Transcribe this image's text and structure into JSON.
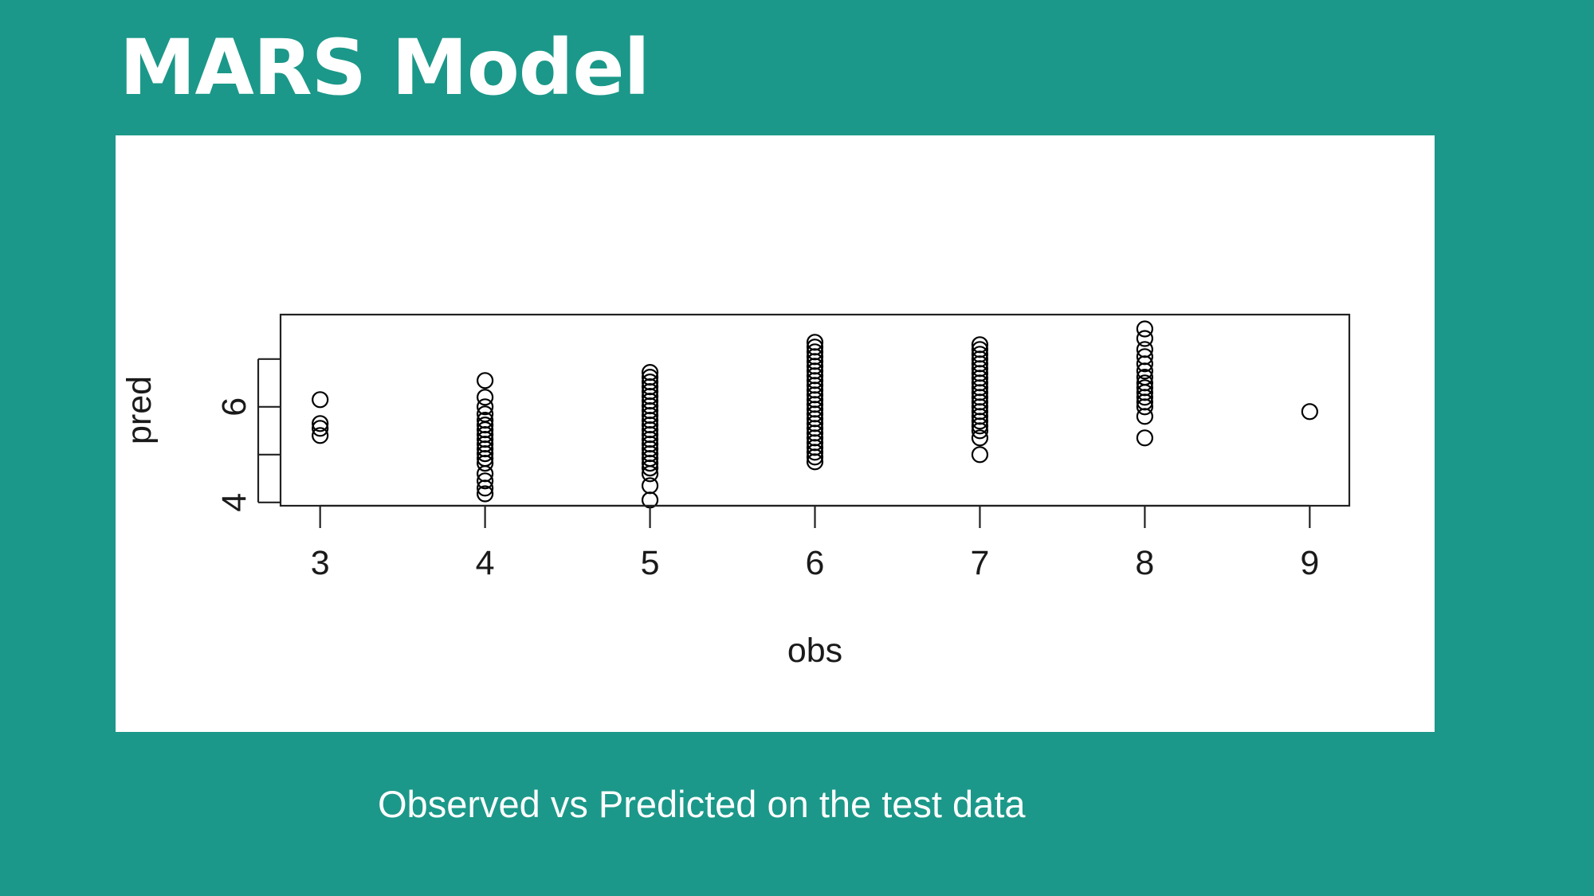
{
  "slide": {
    "title": "MARS Model",
    "caption": "Observed vs Predicted on the test data"
  },
  "colors": {
    "background": "#1b9889",
    "panel": "#ffffff",
    "marks": "#000000"
  },
  "chart_data": {
    "type": "scatter",
    "xlabel": "obs",
    "ylabel": "pred",
    "xlim": [
      2.76,
      9.24
    ],
    "ylim": [
      3.93,
      7.93
    ],
    "x_ticks": [
      3,
      4,
      5,
      6,
      7,
      8,
      9
    ],
    "y_ticks": [
      4,
      5,
      6,
      7
    ],
    "y_tick_labels": [
      "4",
      "",
      "6",
      ""
    ],
    "grid": false,
    "marker": "open-circle",
    "points": [
      {
        "x": 3,
        "y": 6.15
      },
      {
        "x": 3,
        "y": 5.65
      },
      {
        "x": 3,
        "y": 5.55
      },
      {
        "x": 3,
        "y": 5.4
      },
      {
        "x": 4,
        "y": 6.55
      },
      {
        "x": 4,
        "y": 6.2
      },
      {
        "x": 4,
        "y": 6.0
      },
      {
        "x": 4,
        "y": 5.85
      },
      {
        "x": 4,
        "y": 5.72
      },
      {
        "x": 4,
        "y": 5.62
      },
      {
        "x": 4,
        "y": 5.52
      },
      {
        "x": 4,
        "y": 5.42
      },
      {
        "x": 4,
        "y": 5.32
      },
      {
        "x": 4,
        "y": 5.22
      },
      {
        "x": 4,
        "y": 5.12
      },
      {
        "x": 4,
        "y": 5.02
      },
      {
        "x": 4,
        "y": 4.92
      },
      {
        "x": 4,
        "y": 4.82
      },
      {
        "x": 4,
        "y": 4.6
      },
      {
        "x": 4,
        "y": 4.45
      },
      {
        "x": 4,
        "y": 4.3
      },
      {
        "x": 4,
        "y": 4.18
      },
      {
        "x": 5,
        "y": 6.72
      },
      {
        "x": 5,
        "y": 6.62
      },
      {
        "x": 5,
        "y": 6.52
      },
      {
        "x": 5,
        "y": 6.42
      },
      {
        "x": 5,
        "y": 6.32
      },
      {
        "x": 5,
        "y": 6.22
      },
      {
        "x": 5,
        "y": 6.12
      },
      {
        "x": 5,
        "y": 6.02
      },
      {
        "x": 5,
        "y": 5.92
      },
      {
        "x": 5,
        "y": 5.82
      },
      {
        "x": 5,
        "y": 5.72
      },
      {
        "x": 5,
        "y": 5.62
      },
      {
        "x": 5,
        "y": 5.52
      },
      {
        "x": 5,
        "y": 5.42
      },
      {
        "x": 5,
        "y": 5.32
      },
      {
        "x": 5,
        "y": 5.22
      },
      {
        "x": 5,
        "y": 5.12
      },
      {
        "x": 5,
        "y": 5.02
      },
      {
        "x": 5,
        "y": 4.92
      },
      {
        "x": 5,
        "y": 4.82
      },
      {
        "x": 5,
        "y": 4.72
      },
      {
        "x": 5,
        "y": 4.6
      },
      {
        "x": 5,
        "y": 4.35
      },
      {
        "x": 5,
        "y": 4.05
      },
      {
        "x": 6,
        "y": 7.35
      },
      {
        "x": 6,
        "y": 7.25
      },
      {
        "x": 6,
        "y": 7.15
      },
      {
        "x": 6,
        "y": 7.05
      },
      {
        "x": 6,
        "y": 6.95
      },
      {
        "x": 6,
        "y": 6.85
      },
      {
        "x": 6,
        "y": 6.75
      },
      {
        "x": 6,
        "y": 6.65
      },
      {
        "x": 6,
        "y": 6.55
      },
      {
        "x": 6,
        "y": 6.45
      },
      {
        "x": 6,
        "y": 6.35
      },
      {
        "x": 6,
        "y": 6.25
      },
      {
        "x": 6,
        "y": 6.15
      },
      {
        "x": 6,
        "y": 6.05
      },
      {
        "x": 6,
        "y": 5.95
      },
      {
        "x": 6,
        "y": 5.85
      },
      {
        "x": 6,
        "y": 5.75
      },
      {
        "x": 6,
        "y": 5.65
      },
      {
        "x": 6,
        "y": 5.55
      },
      {
        "x": 6,
        "y": 5.45
      },
      {
        "x": 6,
        "y": 5.35
      },
      {
        "x": 6,
        "y": 5.25
      },
      {
        "x": 6,
        "y": 5.15
      },
      {
        "x": 6,
        "y": 5.05
      },
      {
        "x": 6,
        "y": 4.95
      },
      {
        "x": 6,
        "y": 4.85
      },
      {
        "x": 7,
        "y": 7.3
      },
      {
        "x": 7,
        "y": 7.2
      },
      {
        "x": 7,
        "y": 7.1
      },
      {
        "x": 7,
        "y": 7.0
      },
      {
        "x": 7,
        "y": 6.9
      },
      {
        "x": 7,
        "y": 6.8
      },
      {
        "x": 7,
        "y": 6.7
      },
      {
        "x": 7,
        "y": 6.6
      },
      {
        "x": 7,
        "y": 6.5
      },
      {
        "x": 7,
        "y": 6.4
      },
      {
        "x": 7,
        "y": 6.3
      },
      {
        "x": 7,
        "y": 6.2
      },
      {
        "x": 7,
        "y": 6.1
      },
      {
        "x": 7,
        "y": 6.0
      },
      {
        "x": 7,
        "y": 5.9
      },
      {
        "x": 7,
        "y": 5.8
      },
      {
        "x": 7,
        "y": 5.7
      },
      {
        "x": 7,
        "y": 5.6
      },
      {
        "x": 7,
        "y": 5.5
      },
      {
        "x": 7,
        "y": 5.35
      },
      {
        "x": 7,
        "y": 5.0
      },
      {
        "x": 8,
        "y": 7.63
      },
      {
        "x": 8,
        "y": 7.43
      },
      {
        "x": 8,
        "y": 7.2
      },
      {
        "x": 8,
        "y": 7.05
      },
      {
        "x": 8,
        "y": 6.9
      },
      {
        "x": 8,
        "y": 6.75
      },
      {
        "x": 8,
        "y": 6.62
      },
      {
        "x": 8,
        "y": 6.5
      },
      {
        "x": 8,
        "y": 6.4
      },
      {
        "x": 8,
        "y": 6.3
      },
      {
        "x": 8,
        "y": 6.2
      },
      {
        "x": 8,
        "y": 6.1
      },
      {
        "x": 8,
        "y": 6.0
      },
      {
        "x": 8,
        "y": 5.8
      },
      {
        "x": 8,
        "y": 5.35
      },
      {
        "x": 9,
        "y": 5.9
      }
    ]
  }
}
